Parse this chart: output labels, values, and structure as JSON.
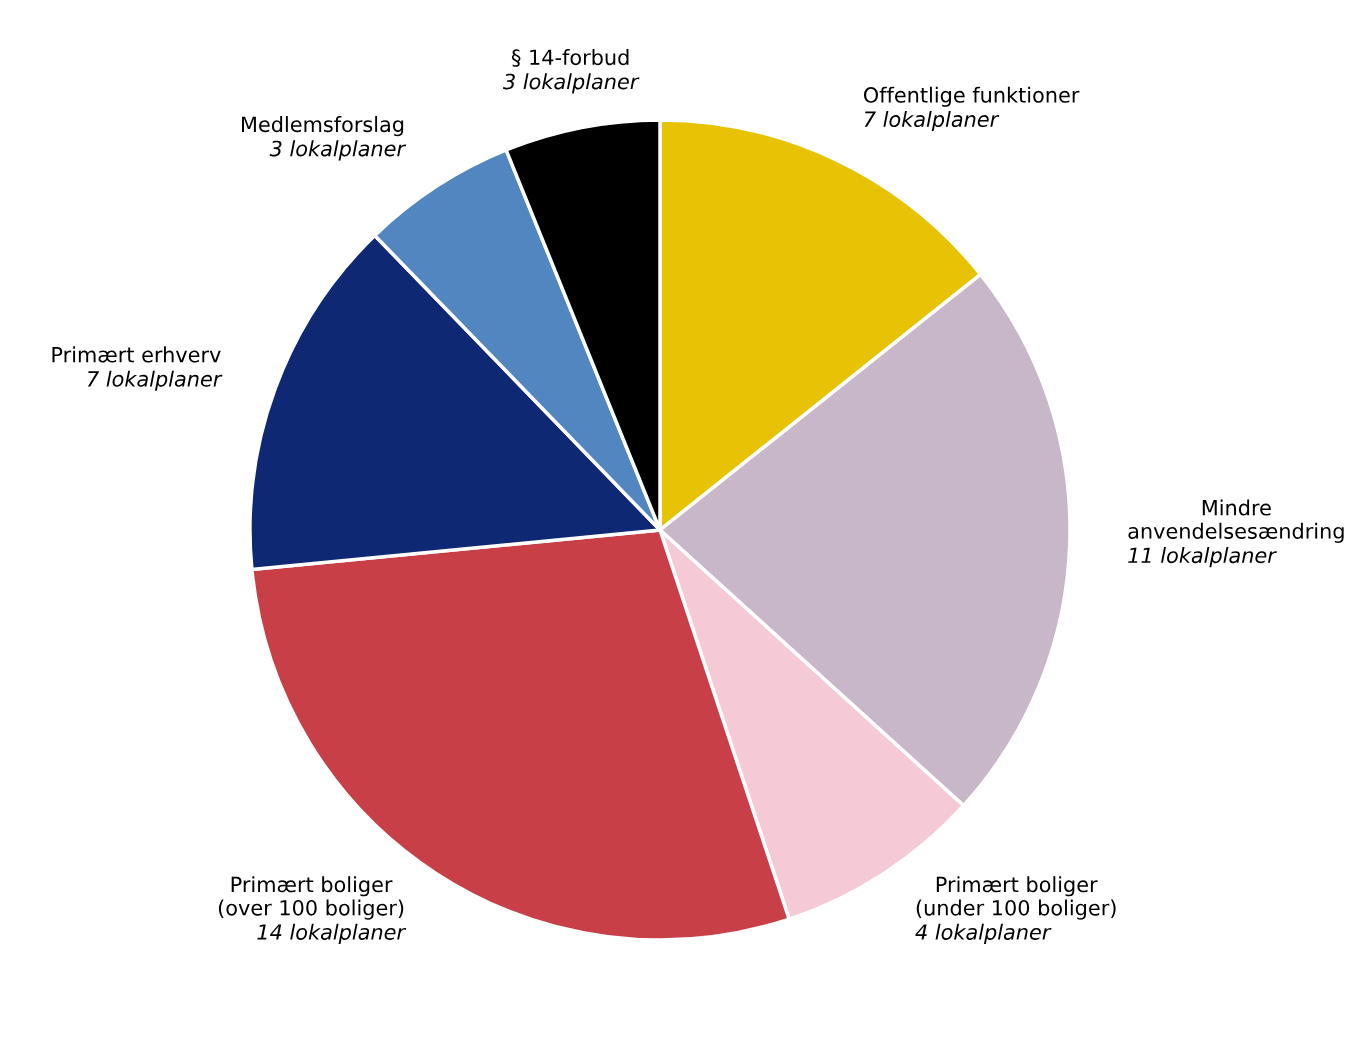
{
  "chart_data": {
    "type": "pie",
    "categories": [
      "Offentlige funktioner",
      "Mindre\nanvendelsesændring",
      "Primært boliger\n(under 100 boliger)",
      "Primært boliger\n(over 100 boliger)",
      "Primært erhverv",
      "Medlemsforslag",
      "§ 14-forbud"
    ],
    "values": [
      7,
      11,
      4,
      14,
      7,
      3,
      3
    ],
    "value_labels": [
      "7 lokalplaner",
      "11 lokalplaner",
      "4 lokalplaner",
      "14 lokalplaner",
      "7 lokalplaner",
      "3 lokalplaner",
      "3 lokalplaner"
    ],
    "colors": [
      "#e8c205",
      "#c8b6c9",
      "#f5c9d6",
      "#c83f47",
      "#0e2873",
      "#5286c0",
      "#000000"
    ],
    "legend": false
  }
}
